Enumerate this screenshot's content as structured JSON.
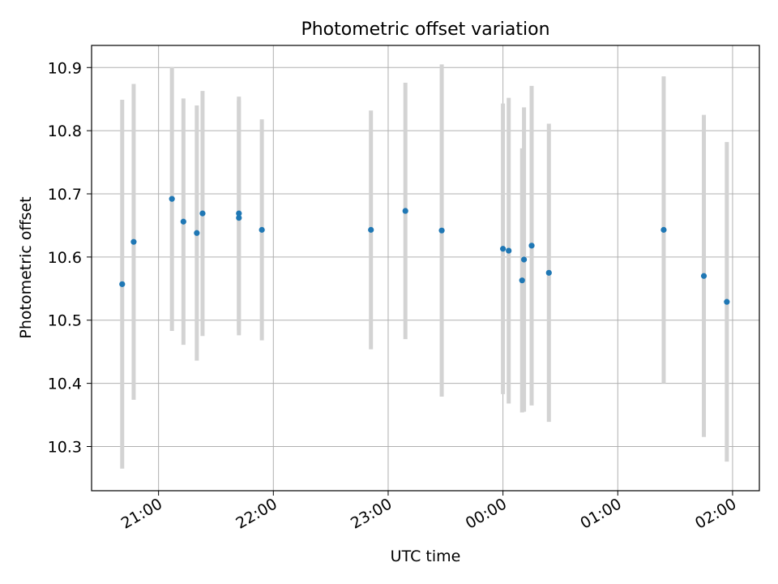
{
  "chart_data": {
    "type": "scatter",
    "title": "Photometric offset variation",
    "xlabel": "UTC time",
    "ylabel": "Photometric offset",
    "colors": {
      "marker": "#1f77b4",
      "errorbar": "#d3d3d3",
      "grid": "#b0b0b0"
    },
    "grid": true,
    "x_axis": {
      "kind": "time",
      "range": [
        "20:25",
        "02:14"
      ],
      "ticks": [
        "21:00",
        "22:00",
        "23:00",
        "00:00",
        "01:00",
        "02:00"
      ]
    },
    "y_axis": {
      "range": [
        10.23,
        10.935
      ],
      "ticks": [
        "10.3",
        "10.4",
        "10.5",
        "10.6",
        "10.7",
        "10.8",
        "10.9"
      ]
    },
    "points": [
      {
        "time": "20:41",
        "y": 10.557,
        "err": 0.292
      },
      {
        "time": "20:47",
        "y": 10.624,
        "err": 0.25
      },
      {
        "time": "21:07",
        "y": 10.692,
        "err": 0.209
      },
      {
        "time": "21:13",
        "y": 10.656,
        "err": 0.195
      },
      {
        "time": "21:20",
        "y": 10.638,
        "err": 0.202
      },
      {
        "time": "21:23",
        "y": 10.669,
        "err": 0.194
      },
      {
        "time": "21:42",
        "y": 10.662,
        "err": 0.186
      },
      {
        "time": "21:42",
        "y": 10.669,
        "err": 0.185
      },
      {
        "time": "21:54",
        "y": 10.643,
        "err": 0.175
      },
      {
        "time": "22:51",
        "y": 10.643,
        "err": 0.189
      },
      {
        "time": "23:09",
        "y": 10.673,
        "err": 0.203
      },
      {
        "time": "23:28",
        "y": 10.642,
        "err": 0.263
      },
      {
        "time": "00:00",
        "y": 10.613,
        "err": 0.23
      },
      {
        "time": "00:03",
        "y": 10.61,
        "err": 0.242
      },
      {
        "time": "00:10",
        "y": 10.563,
        "err": 0.209
      },
      {
        "time": "00:11",
        "y": 10.596,
        "err": 0.241
      },
      {
        "time": "00:15",
        "y": 10.618,
        "err": 0.253
      },
      {
        "time": "00:24",
        "y": 10.575,
        "err": 0.236
      },
      {
        "time": "01:24",
        "y": 10.643,
        "err": 0.243
      },
      {
        "time": "01:45",
        "y": 10.57,
        "err": 0.255
      },
      {
        "time": "01:57",
        "y": 10.529,
        "err": 0.253
      }
    ]
  }
}
